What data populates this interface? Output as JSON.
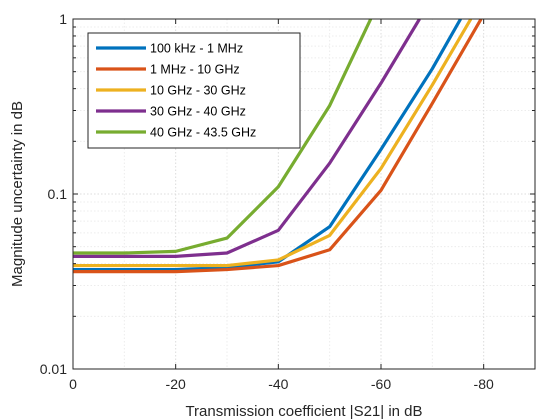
{
  "chart_data": {
    "type": "line",
    "title": "",
    "xlabel": "Transmission coefficient |S21| in dB",
    "ylabel": "Magnitude uncertainty in dB",
    "xlim": [
      0,
      -90
    ],
    "ylim": [
      0.01,
      1
    ],
    "yscale": "log",
    "xticks": [
      0,
      -20,
      -40,
      -60,
      -80
    ],
    "xtick_labels": [
      "0",
      "-20",
      "-40",
      "-60",
      "-80"
    ],
    "yticks": [
      0.01,
      0.1,
      1
    ],
    "ytick_labels": [
      "0.01",
      "0.1",
      "1"
    ],
    "grid": true,
    "legend_position": "top-left",
    "series": [
      {
        "name": "100 kHz - 1 MHz",
        "color": "#0072BD",
        "x": [
          0,
          -10,
          -20,
          -30,
          -40,
          -50,
          -60,
          -70,
          -75.5
        ],
        "y": [
          0.037,
          0.037,
          0.037,
          0.038,
          0.041,
          0.065,
          0.18,
          0.52,
          1.0
        ]
      },
      {
        "name": "1 MHz - 10 GHz",
        "color": "#D95319",
        "x": [
          0,
          -10,
          -20,
          -30,
          -40,
          -50,
          -60,
          -70,
          -79.5
        ],
        "y": [
          0.036,
          0.036,
          0.036,
          0.037,
          0.039,
          0.048,
          0.105,
          0.33,
          1.0
        ]
      },
      {
        "name": "10 GHz - 30 GHz",
        "color": "#EDB120",
        "x": [
          0,
          -10,
          -20,
          -30,
          -40,
          -50,
          -60,
          -70,
          -77.5
        ],
        "y": [
          0.039,
          0.039,
          0.039,
          0.039,
          0.042,
          0.058,
          0.14,
          0.42,
          1.0
        ]
      },
      {
        "name": "30 GHz - 40 GHz",
        "color": "#7E2F8E",
        "x": [
          0,
          -10,
          -20,
          -30,
          -40,
          -50,
          -60,
          -67.5
        ],
        "y": [
          0.044,
          0.044,
          0.044,
          0.046,
          0.062,
          0.15,
          0.43,
          1.0
        ]
      },
      {
        "name": "40 GHz - 43.5 GHz",
        "color": "#77AC30",
        "x": [
          0,
          -10,
          -20,
          -30,
          -40,
          -50,
          -58
        ],
        "y": [
          0.046,
          0.046,
          0.047,
          0.056,
          0.11,
          0.32,
          1.0
        ]
      }
    ]
  }
}
